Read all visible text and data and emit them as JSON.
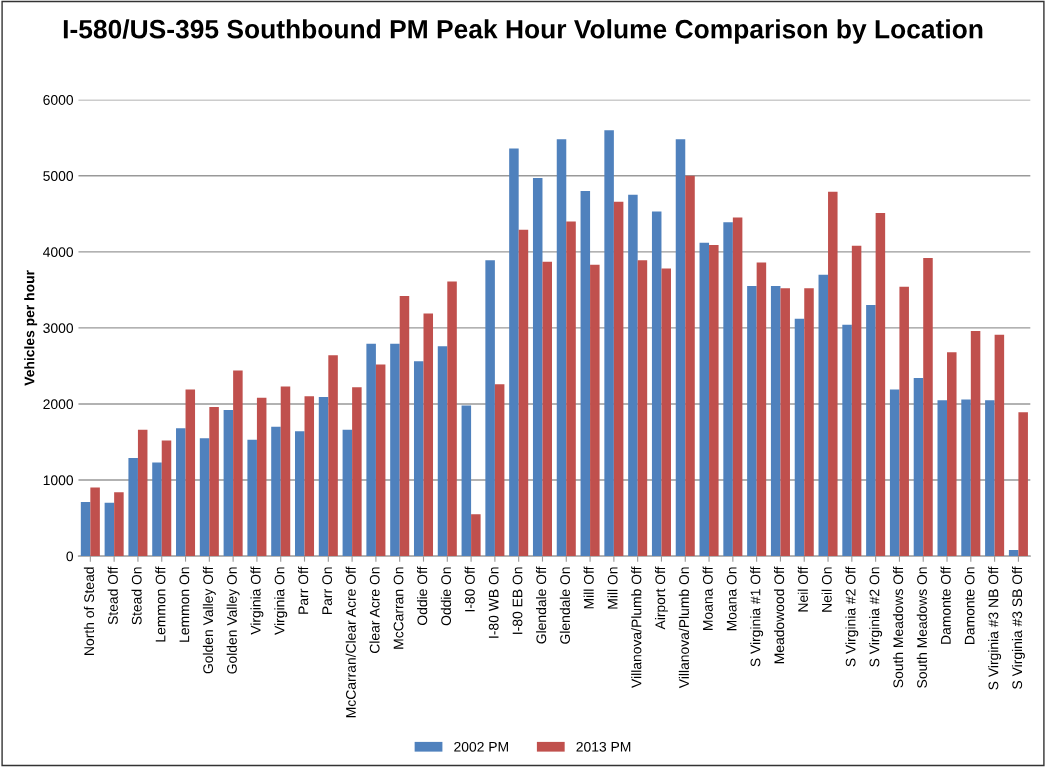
{
  "chart_data": {
    "type": "bar",
    "title": "I-580/US-395 Southbound PM Peak Hour Volume Comparison by Location",
    "ylabel": "Vehicles per hour",
    "categories": [
      "North of Stead",
      "Stead Off",
      "Stead On",
      "Lemmon Off",
      "Lemmon On",
      "Golden Valley Off",
      "Golden Valley On",
      "Virginia Off",
      "Virginia On",
      "Parr Off",
      "Parr On",
      "McCarran/Clear Acre Off",
      "Clear Acre On",
      "McCarran On",
      "Oddie Off",
      "Oddie On",
      "I-80 Off",
      "I-80 WB On",
      "I-80 EB On",
      "Glendale Off",
      "Glendale On",
      "Mill Off",
      "Mill On",
      "Villanova/Plumb Off",
      "Airport Off",
      "Villanova/Plumb On",
      "Moana Off",
      "Moana On",
      "S Virginia #1 Off",
      "Meadowood Off",
      "Neil Off",
      "Neil On",
      "S Virginia #2 Off",
      "S Virginia #2 On",
      "South Meadows Off",
      "South Meadows On",
      "Damonte Off",
      "Damonte On",
      "S Virginia #3 NB Off",
      "S Virginia #3 SB Off"
    ],
    "series": [
      {
        "name": "2002 PM",
        "color": "#4f81bd",
        "values": [
          710,
          700,
          1290,
          1230,
          1680,
          1550,
          1920,
          1530,
          1700,
          1640,
          2090,
          1660,
          2790,
          2790,
          2560,
          2760,
          1980,
          3890,
          5360,
          4970,
          5480,
          4800,
          5600,
          4750,
          4530,
          5480,
          4120,
          4390,
          3550,
          3550,
          3120,
          3700,
          3040,
          3300,
          2190,
          2340,
          2050,
          2060,
          2050,
          80
        ]
      },
      {
        "name": "2013 PM",
        "color": "#c0504d",
        "values": [
          900,
          840,
          1660,
          1520,
          2190,
          1960,
          2440,
          2080,
          2230,
          2100,
          2640,
          2220,
          2520,
          3420,
          3190,
          3610,
          550,
          2260,
          4290,
          3870,
          4400,
          3830,
          4660,
          3890,
          3780,
          5000,
          4090,
          4450,
          3860,
          3520,
          3520,
          4790,
          4080,
          4510,
          3540,
          3920,
          2680,
          2960,
          2910,
          1890
        ]
      }
    ],
    "ylim": [
      0,
      6000
    ],
    "yticks": [
      0,
      1000,
      2000,
      3000,
      4000,
      5000,
      6000
    ],
    "grid": "y",
    "legend": "bottom"
  }
}
